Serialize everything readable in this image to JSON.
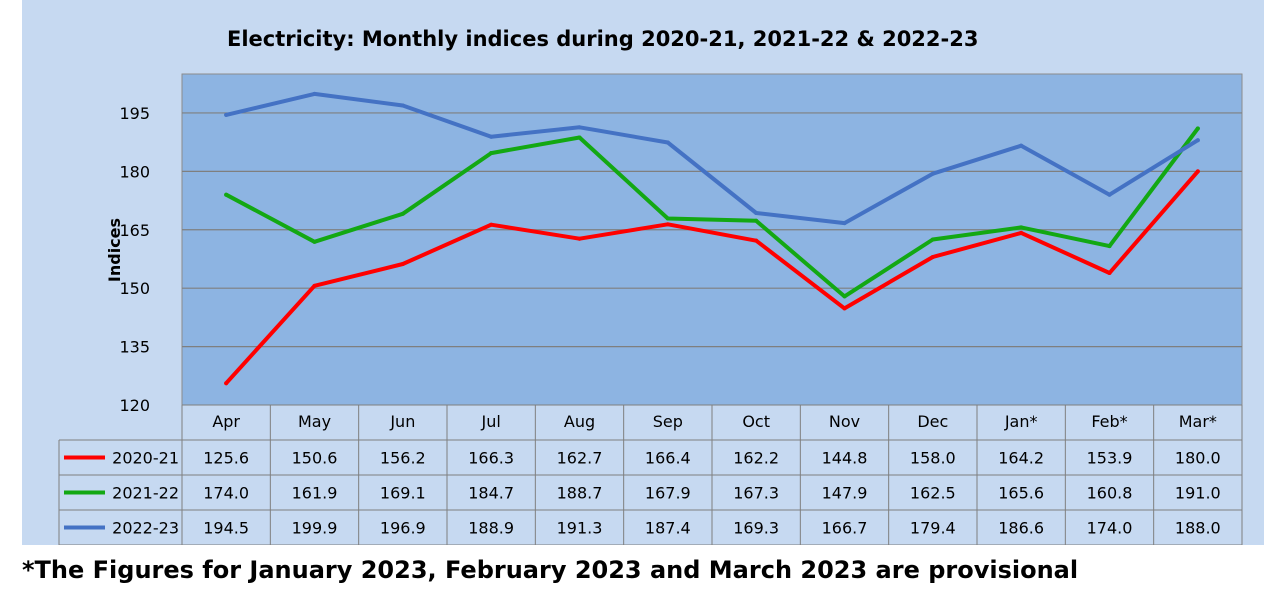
{
  "chart_data": {
    "type": "line",
    "title": "Electricity: Monthly indices during 2020-21, 2021-22 & 2022-23",
    "xlabel": "",
    "ylabel": "Indices",
    "ylim": [
      120,
      205
    ],
    "yticks": [
      120,
      135,
      150,
      165,
      180,
      195
    ],
    "grid": true,
    "legend": "left, in data table",
    "categories": [
      "Apr",
      "May",
      "Jun",
      "Jul",
      "Aug",
      "Sep",
      "Oct",
      "Nov",
      "Dec",
      "Jan*",
      "Feb*",
      "Mar*"
    ],
    "series": [
      {
        "name": "2020-21",
        "color": "#ff0000",
        "values": [
          125.6,
          150.6,
          156.2,
          166.3,
          162.7,
          166.4,
          162.2,
          144.8,
          158.0,
          164.2,
          153.9,
          180.0
        ]
      },
      {
        "name": "2021-22",
        "color": "#13a813",
        "values": [
          174.0,
          161.9,
          169.1,
          184.7,
          188.7,
          167.9,
          167.3,
          147.9,
          162.5,
          165.6,
          160.8,
          191.0
        ]
      },
      {
        "name": "2022-23",
        "color": "#4472c4",
        "values": [
          194.5,
          199.9,
          196.9,
          188.9,
          191.3,
          187.4,
          169.3,
          166.7,
          179.4,
          186.6,
          174.0,
          188.0
        ]
      }
    ],
    "table_values": [
      [
        "125.6",
        "150.6",
        "156.2",
        "166.3",
        "162.7",
        "166.4",
        "162.2",
        "144.8",
        "158.0",
        "164.2",
        "153.9",
        "180.0"
      ],
      [
        "174.0",
        "161.9",
        "169.1",
        "184.7",
        "188.7",
        "167.9",
        "167.3",
        "147.9",
        "162.5",
        "165.6",
        "160.8",
        "191.0"
      ],
      [
        "194.5",
        "199.9",
        "196.9",
        "188.9",
        "191.3",
        "187.4",
        "169.3",
        "166.7",
        "179.4",
        "186.6",
        "174.0",
        "188.0"
      ]
    ]
  },
  "colors": {
    "panel_background": "#c6d9f1",
    "plot_background": "#8db4e2",
    "gridline": "#7f7f7f"
  },
  "footnote": "*The Figures for January 2023, February 2023 and March 2023 are provisional"
}
